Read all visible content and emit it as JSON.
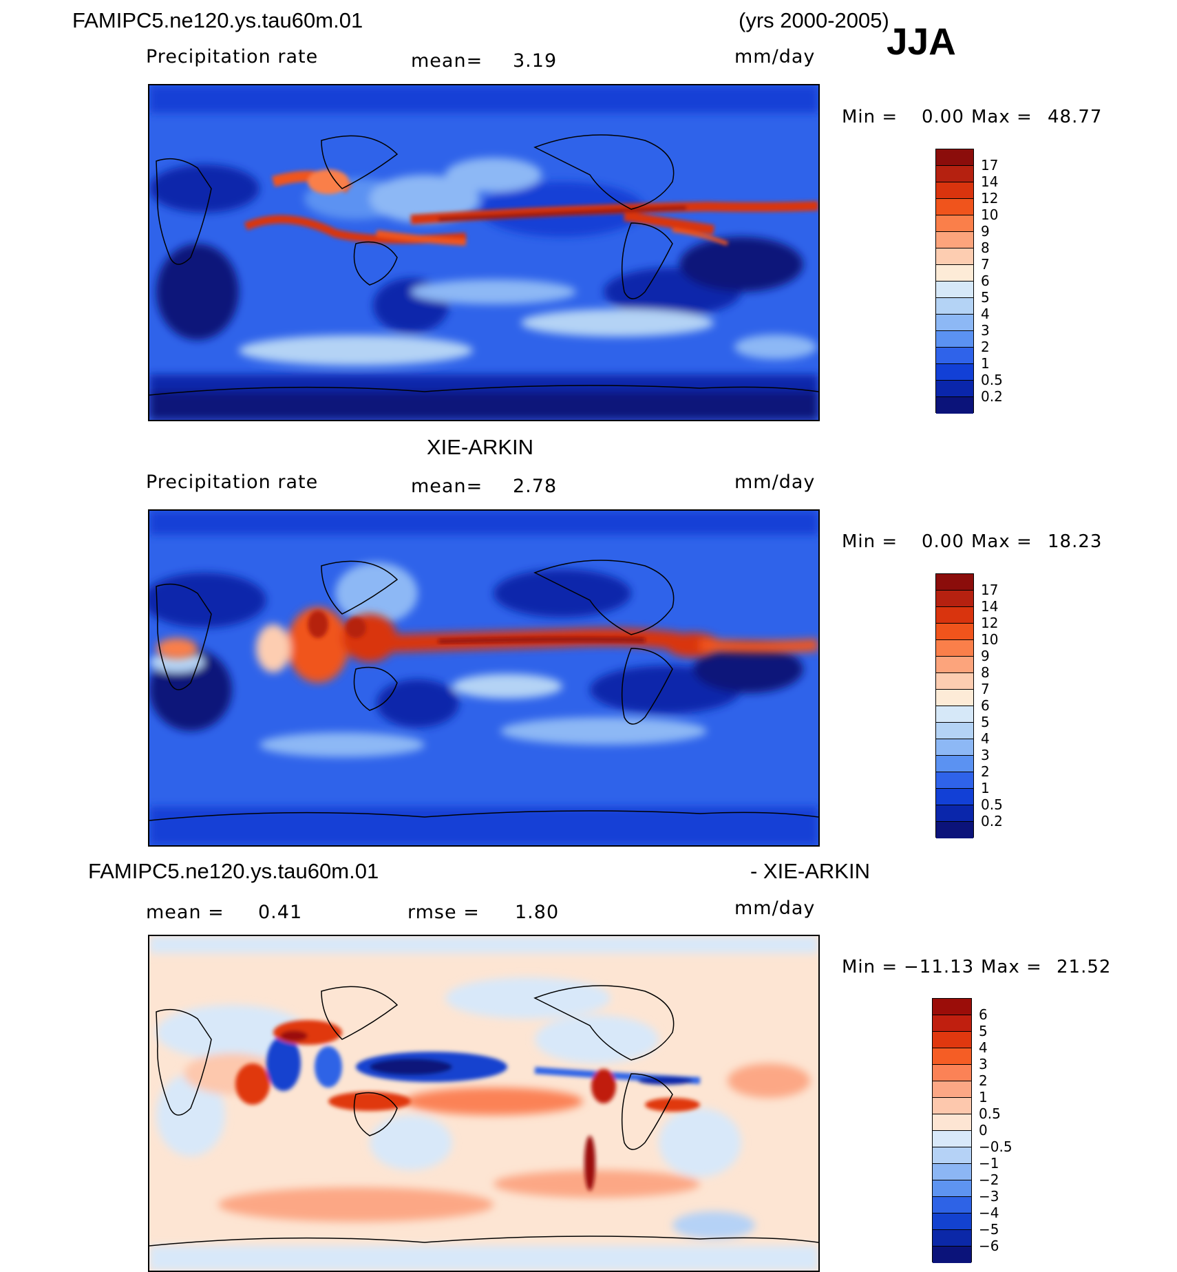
{
  "header": {
    "model_name": "FAMIPC5.ne120.ys.tau60m.01",
    "years": "(yrs 2000-2005)",
    "season": "JJA"
  },
  "panels": [
    {
      "id": "model",
      "title": "",
      "variable": "Precipitation rate",
      "stat_label": "mean=",
      "stat_value": "3.19",
      "units": "mm/day",
      "min_label": "Min =",
      "min_value": "0.00",
      "max_label": "Max =",
      "max_value": "48.77"
    },
    {
      "id": "obs",
      "title": "XIE-ARKIN",
      "variable": "Precipitation rate",
      "stat_label": "mean=",
      "stat_value": "2.78",
      "units": "mm/day",
      "min_label": "Min =",
      "min_value": "0.00",
      "max_label": "Max =",
      "max_value": "18.23"
    },
    {
      "id": "diff",
      "title_left": "FAMIPC5.ne120.ys.tau60m.01",
      "title_right": "- XIE-ARKIN",
      "stat_label": "mean =",
      "stat_value": "0.41",
      "rmse_label": "rmse =",
      "rmse_value": "1.80",
      "units": "mm/day",
      "min_label": "Min =",
      "min_value": "−11.13",
      "max_label": "Max =",
      "max_value": "21.52"
    }
  ],
  "colorbars": {
    "precip": {
      "labels": [
        "17",
        "14",
        "12",
        "10",
        "9",
        "8",
        "7",
        "6",
        "5",
        "4",
        "3",
        "2",
        "1",
        "0.5",
        "0.2"
      ],
      "colors": [
        "#8b0d0b",
        "#b52110",
        "#d9340e",
        "#f0541c",
        "#fa7f4a",
        "#fca47c",
        "#fdcdb1",
        "#fdebd7",
        "#d6e8f8",
        "#b4d3f5",
        "#8db8f5",
        "#5b92f2",
        "#2f63ea",
        "#1240d6",
        "#0a26ab",
        "#0b137a"
      ]
    },
    "diff": {
      "labels": [
        "6",
        "5",
        "4",
        "3",
        "2",
        "1",
        "0.5",
        "0",
        "−0.5",
        "−1",
        "−2",
        "−3",
        "−4",
        "−5",
        "−6"
      ],
      "colors": [
        "#9b0d09",
        "#c01f0f",
        "#e0380f",
        "#f55d25",
        "#fb8256",
        "#fca785",
        "#fdc8ad",
        "#fde5d3",
        "#d8e8f9",
        "#b5d2f6",
        "#8cb6f4",
        "#5e94f0",
        "#2e63e6",
        "#1342cf",
        "#0b28a8",
        "#0b137a"
      ]
    }
  }
}
